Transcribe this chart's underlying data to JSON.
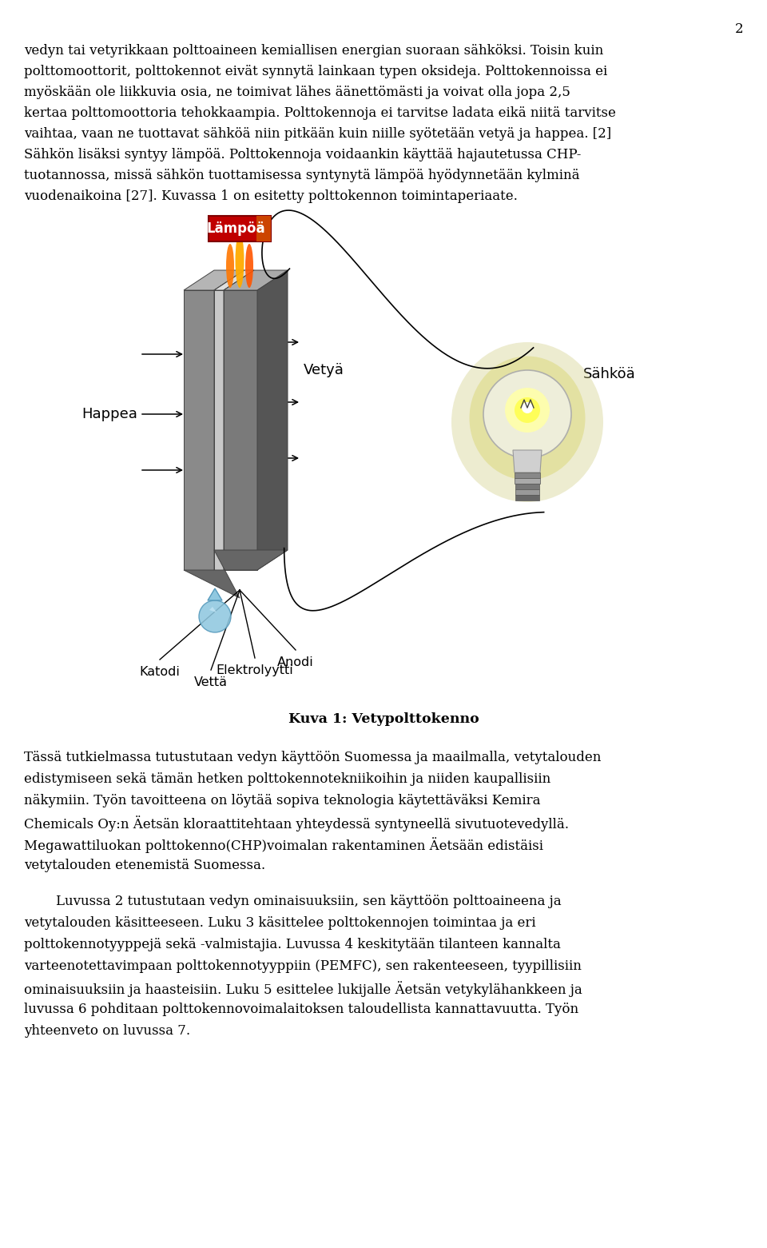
{
  "page_num": "2",
  "bg_color": "#ffffff",
  "text_color": "#000000",
  "top_text_lines": [
    "vedyn tai vetyrikkaan polttoaineen kemiallisen energian suoraan sähköksi. Toisin kuin",
    "polttomoottorit, polttokennot eivät synnytä lainkaan typen oksideja. Polttokennoissa ei",
    "myöskään ole liikkuvia osia, ne toimivat lähes äänettömästi ja voivat olla jopa 2,5",
    "kertaa polttomoottoria tehokkaampia. Polttokennoja ei tarvitse ladata eikä niitä tarvitse",
    "vaihtaa, vaan ne tuottavat sähköä niin pitkään kuin niille syötetään vetyä ja happea. [2]",
    "Sähkön lisäksi syntyy lämpöä. Polttokennoja voidaankin käyttää hajautetussa CHP-",
    "tuotannossa, missä sähkön tuottamisessa syntynytä lämpöä hyödynnetään kylminä",
    "vuodenaikoina [27]. Kuvassa 1 on esitetty polttokennon toimintaperiaate."
  ],
  "caption": "Kuva 1: Vetypolttokenno",
  "bottom_text_1_lines": [
    "Tässä tutkielmassa tutustutaan vedyn käyttöön Suomessa ja maailmalla, vetytalouden",
    "edistymiseen sekä tämän hetken polttokennotekniikoihin ja niiden kaupallisiin",
    "näkymiin. Työn tavoitteena on löytää sopiva teknologia käytettäväksi Kemira",
    "Chemicals Oy:n Äetsän kloraattitehtaan yhteydessä syntyneellä sivutuotevedyllä.",
    "Megawattiluokan polttokenno(CHP)voimalan rakentaminen Äetsään edistäisi",
    "vetytalouden etenemistä Suomessa."
  ],
  "bottom_text_2_lines": [
    "Luvussa 2 tutustutaan vedyn ominaisuuksiin, sen käyttöön polttoaineena ja",
    "vetytalouden käsitteeseen. Luku 3 käsittelee polttokennojen toimintaa ja eri",
    "polttokennotyyppejä sekä -valmistajia. Luvussa 4 keskitytään tilanteen kannalta",
    "varteenotettavimpaan polttokennotyyppiin (PEMFC), sen rakenteeseen, tyypillisiin",
    "ominaisuuksiin ja haasteisiin. Luku 5 esittelee lukijalle Äetsän vetykylähankkeen ja",
    "luvussa 6 pohditaan polttokennovoimalaitoksen taloudellista kannattavuutta. Työn",
    "yhteenveto on luvussa 7."
  ],
  "label_lampoa": "Lämpöä",
  "label_happea": "Happea",
  "label_vetya": "Vetyä",
  "label_sahkoa": "Sähköä",
  "label_katodi": "Katodi",
  "label_vetta": "Vettä",
  "label_elektrolyytti": "Elektrolyytti",
  "label_anodi": "Anodi"
}
